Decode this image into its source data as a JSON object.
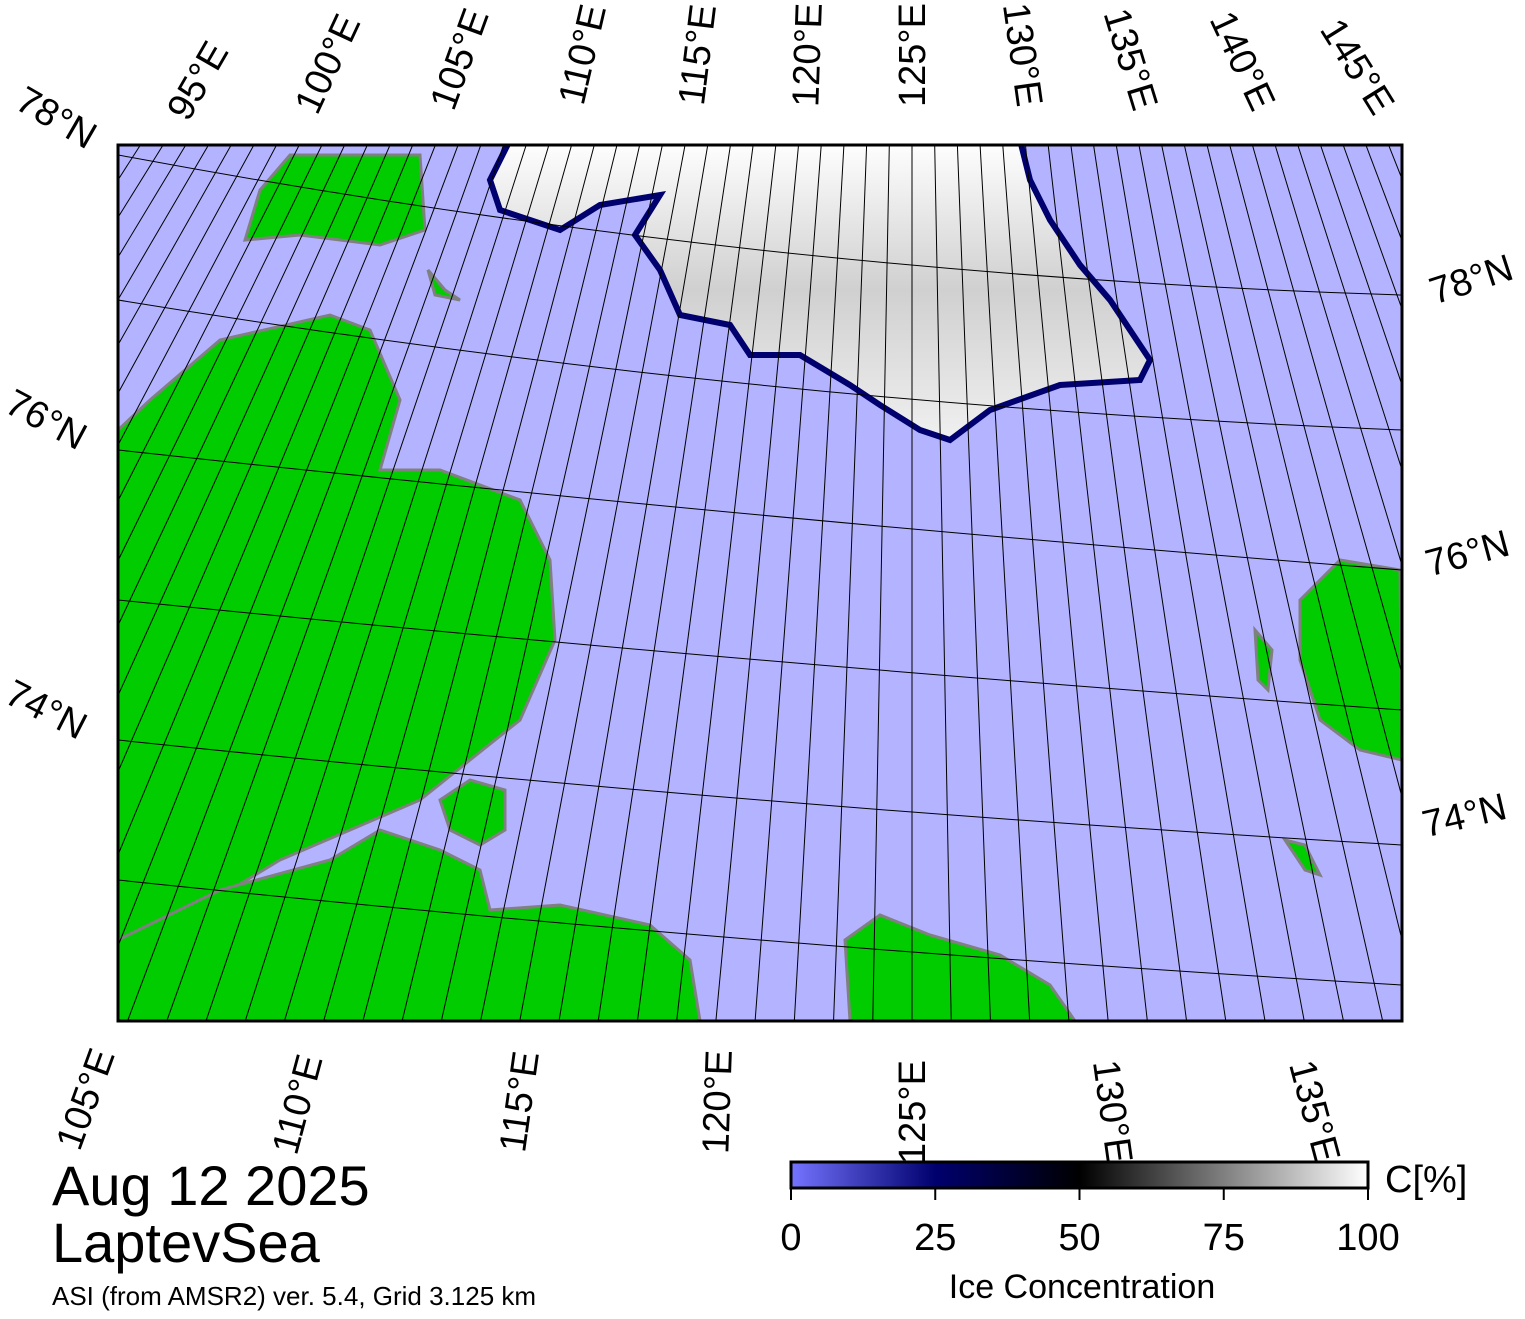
{
  "map": {
    "top_labels": [
      "95°E",
      "100°E",
      "105°E",
      "110°E",
      "115°E",
      "120°E",
      "125°E",
      "130°E",
      "135°E",
      "140°E",
      "145°E"
    ],
    "left_labels": [
      "78°N",
      "76°N",
      "74°N"
    ],
    "right_labels": [
      "78°N",
      "76°N",
      "74°N"
    ],
    "bottom_labels": [
      "105°E",
      "110°E",
      "115°E",
      "120°E",
      "125°E",
      "130°E",
      "135°E"
    ],
    "date": "Aug 12 2025",
    "region": "LaptevSea",
    "source": "ASI (from AMSR2) ver. 5.4,  Grid 3.125 km"
  },
  "colorbar": {
    "ticks": [
      0,
      25,
      50,
      75,
      100
    ],
    "range": [
      0,
      100
    ],
    "label": "Ice Concentration",
    "unit": "C[%]"
  }
}
